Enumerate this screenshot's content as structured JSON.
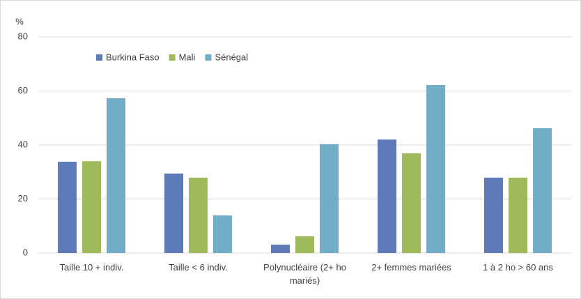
{
  "chart_data": {
    "type": "bar",
    "y_label": "%",
    "categories": [
      "Taille 10 +  indiv.",
      "Taille < 6 indiv.",
      "Polynucléaire (2+ ho mariés)",
      "2+ femmes mariées",
      "1 à 2 ho > 60 ans"
    ],
    "series": [
      {
        "name": "Burkina Faso",
        "color": "#5f7ab9",
        "values": [
          33.8,
          29.4,
          3.1,
          42,
          27.9
        ]
      },
      {
        "name": "Mali",
        "color": "#9fba5a",
        "values": [
          34,
          27.9,
          6.2,
          36.9,
          27.9
        ]
      },
      {
        "name": "Sénégal",
        "color": "#72adc7",
        "values": [
          57.3,
          13.9,
          40.3,
          62.2,
          46.2
        ]
      }
    ],
    "ylim": [
      0,
      80
    ],
    "yticks": [
      0,
      20,
      40,
      60,
      80
    ],
    "grid": true,
    "legend": "top-left"
  }
}
